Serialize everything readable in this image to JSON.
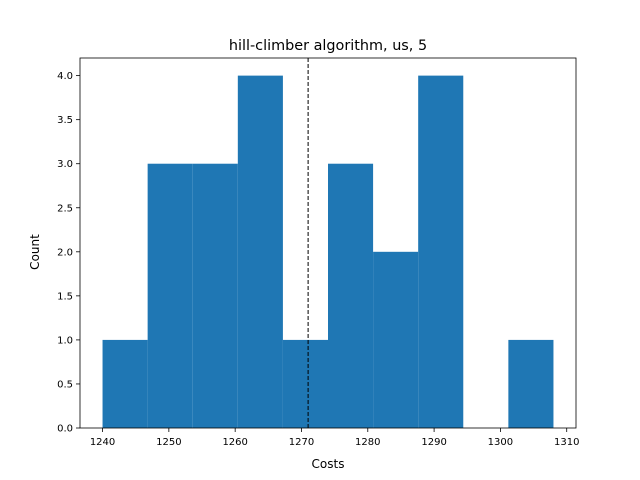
{
  "chart_data": {
    "type": "bar",
    "title": "hill-climber algorithm, us, 5",
    "xlabel": "Costs",
    "ylabel": "Count",
    "xlim": [
      1236.6,
      1311.4
    ],
    "ylim": [
      0,
      4.2
    ],
    "grid": false,
    "bin_edges": [
      1240.0,
      1246.8,
      1253.6,
      1260.4,
      1267.2,
      1274.0,
      1280.8,
      1287.6,
      1294.4,
      1301.2,
      1308.0
    ],
    "counts": [
      1,
      3,
      3,
      4,
      1,
      3,
      2,
      4,
      0,
      1
    ],
    "bar_color": "#1f77b4",
    "vline": {
      "x": 1271.0,
      "style": "dashed",
      "color": "#000000"
    },
    "x_ticks": [
      1240,
      1250,
      1260,
      1270,
      1280,
      1290,
      1300,
      1310
    ],
    "x_tick_labels": [
      "1240",
      "1250",
      "1260",
      "1270",
      "1280",
      "1290",
      "1300",
      "1310"
    ],
    "y_ticks": [
      0.0,
      0.5,
      1.0,
      1.5,
      2.0,
      2.5,
      3.0,
      3.5,
      4.0
    ],
    "y_tick_labels": [
      "0.0",
      "0.5",
      "1.0",
      "1.5",
      "2.0",
      "2.5",
      "3.0",
      "3.5",
      "4.0"
    ]
  }
}
